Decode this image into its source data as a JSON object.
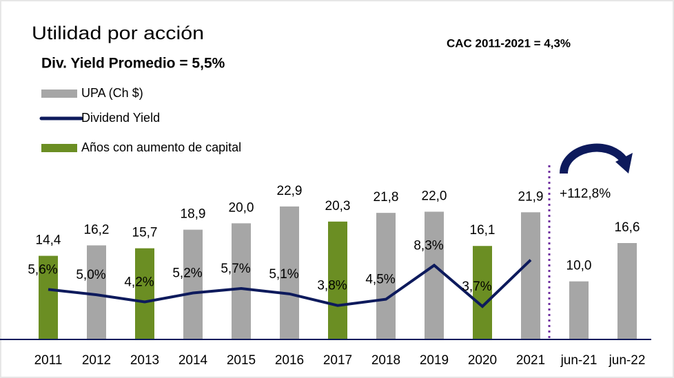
{
  "chart_data": {
    "type": "bar",
    "title": "Utilidad por acción",
    "subtitle": "Div. Yield Promedio = 5,5%",
    "annotations": [
      "CAC 2011-2021 = 4,3%",
      "+112,8%"
    ],
    "categories": [
      "2011",
      "2012",
      "2013",
      "2014",
      "2015",
      "2016",
      "2017",
      "2018",
      "2019",
      "2020",
      "2021",
      "jun-21",
      "jun-22"
    ],
    "series": [
      {
        "name": "UPA (Ch $)",
        "type": "bar",
        "color": "#a6a6a6",
        "colors": [
          "#6b8e23",
          "#a6a6a6",
          "#6b8e23",
          "#a6a6a6",
          "#a6a6a6",
          "#a6a6a6",
          "#6b8e23",
          "#a6a6a6",
          "#a6a6a6",
          "#6b8e23",
          "#a6a6a6",
          "#a6a6a6",
          "#a6a6a6"
        ],
        "values": [
          14.4,
          16.2,
          15.7,
          18.9,
          20.0,
          22.9,
          20.3,
          21.8,
          22.0,
          16.1,
          21.9,
          10.0,
          16.6
        ],
        "value_labels": [
          "14,4",
          "16,2",
          "15,7",
          "18,9",
          "20,0",
          "22,9",
          "20,3",
          "21,8",
          "22,0",
          "16,1",
          "21,9",
          "10,0",
          "16,6"
        ]
      },
      {
        "name": "Dividend Yield",
        "type": "line",
        "axis": "y2",
        "color": "#0d1a5c",
        "values": [
          5.6,
          5.0,
          4.2,
          5.2,
          5.7,
          5.1,
          3.8,
          4.5,
          8.3,
          3.7,
          8.9,
          null,
          null
        ],
        "value_labels": [
          "5,6%",
          "5,0%",
          "4,2%",
          "5,2%",
          "5,7%",
          "5,1%",
          "3,8%",
          "4,5%",
          "8,3%",
          "3,7%",
          null,
          null,
          null
        ]
      }
    ],
    "highlight_legend": {
      "name": "Años con aumento de capital",
      "color": "#6b8e23"
    },
    "ylim": [
      0,
      30
    ],
    "y2lim": [
      0,
      19.5
    ]
  }
}
